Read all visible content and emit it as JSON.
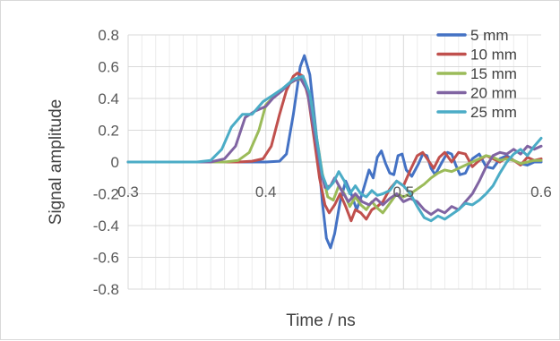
{
  "chart_data": {
    "type": "line",
    "title": "",
    "xlabel": "Time / ns",
    "ylabel": "Signal amplitude",
    "xlim": [
      0.3,
      0.6
    ],
    "ylim": [
      -0.8,
      0.8
    ],
    "x_ticks": [
      "0.3",
      "0.4",
      "0.5",
      "0.6"
    ],
    "y_ticks": [
      "0.8",
      "0.6",
      "0.4",
      "0.2",
      "0",
      "-0.2",
      "-0.4",
      "-0.6",
      "-0.8"
    ],
    "x_minor_step": 0.01,
    "y_major_step": 0.2,
    "grid": true,
    "legend_position": "top-right",
    "series": [
      {
        "name": "5 mm",
        "color": "#4472C4",
        "points": [
          [
            0.3,
            0
          ],
          [
            0.38,
            0
          ],
          [
            0.4,
            0
          ],
          [
            0.41,
            0.005
          ],
          [
            0.415,
            0.05
          ],
          [
            0.42,
            0.3
          ],
          [
            0.425,
            0.6
          ],
          [
            0.428,
            0.67
          ],
          [
            0.432,
            0.55
          ],
          [
            0.437,
            0.15
          ],
          [
            0.441,
            -0.25
          ],
          [
            0.444,
            -0.48
          ],
          [
            0.447,
            -0.54
          ],
          [
            0.45,
            -0.45
          ],
          [
            0.454,
            -0.25
          ],
          [
            0.458,
            -0.12
          ],
          [
            0.462,
            -0.2
          ],
          [
            0.466,
            -0.3
          ],
          [
            0.47,
            -0.2
          ],
          [
            0.475,
            -0.05
          ],
          [
            0.478,
            -0.1
          ],
          [
            0.481,
            0.03
          ],
          [
            0.484,
            0.07
          ],
          [
            0.487,
            -0.01
          ],
          [
            0.49,
            -0.07
          ],
          [
            0.493,
            -0.08
          ],
          [
            0.496,
            0.04
          ],
          [
            0.499,
            0.05
          ],
          [
            0.502,
            -0.05
          ],
          [
            0.506,
            -0.09
          ],
          [
            0.511,
            -0.01
          ],
          [
            0.514,
            0.05
          ],
          [
            0.517,
            0.04
          ],
          [
            0.52,
            -0.04
          ],
          [
            0.523,
            -0.08
          ],
          [
            0.528,
            0
          ],
          [
            0.532,
            0.06
          ],
          [
            0.535,
            0.05
          ],
          [
            0.538,
            -0.02
          ],
          [
            0.541,
            -0.08
          ],
          [
            0.545,
            -0.07
          ],
          [
            0.55,
            0.02
          ],
          [
            0.555,
            0.05
          ],
          [
            0.56,
            -0.03
          ],
          [
            0.565,
            -0.04
          ],
          [
            0.57,
            0.02
          ],
          [
            0.575,
            0.04
          ],
          [
            0.58,
            0.01
          ],
          [
            0.585,
            -0.01
          ],
          [
            0.59,
            -0.02
          ],
          [
            0.595,
            0
          ],
          [
            0.6,
            0
          ]
        ]
      },
      {
        "name": "10 mm",
        "color": "#C0504D",
        "points": [
          [
            0.3,
            0
          ],
          [
            0.38,
            0
          ],
          [
            0.39,
            0.005
          ],
          [
            0.398,
            0.02
          ],
          [
            0.404,
            0.1
          ],
          [
            0.41,
            0.3
          ],
          [
            0.415,
            0.45
          ],
          [
            0.42,
            0.54
          ],
          [
            0.423,
            0.56
          ],
          [
            0.427,
            0.54
          ],
          [
            0.431,
            0.4
          ],
          [
            0.435,
            0.15
          ],
          [
            0.439,
            -0.1
          ],
          [
            0.443,
            -0.27
          ],
          [
            0.446,
            -0.32
          ],
          [
            0.45,
            -0.27
          ],
          [
            0.454,
            -0.2
          ],
          [
            0.458,
            -0.28
          ],
          [
            0.462,
            -0.37
          ],
          [
            0.465,
            -0.3
          ],
          [
            0.469,
            -0.32
          ],
          [
            0.473,
            -0.36
          ],
          [
            0.477,
            -0.3
          ],
          [
            0.481,
            -0.28
          ],
          [
            0.485,
            -0.25
          ],
          [
            0.49,
            -0.17
          ],
          [
            0.495,
            -0.12
          ],
          [
            0.5,
            -0.15
          ],
          [
            0.505,
            -0.05
          ],
          [
            0.51,
            0.04
          ],
          [
            0.514,
            0.06
          ],
          [
            0.518,
            0.01
          ],
          [
            0.522,
            -0.04
          ],
          [
            0.526,
            0.03
          ],
          [
            0.53,
            0.06
          ],
          [
            0.535,
            0
          ],
          [
            0.54,
            0.06
          ],
          [
            0.545,
            0.05
          ],
          [
            0.55,
            -0.03
          ],
          [
            0.555,
            0.01
          ],
          [
            0.56,
            0.04
          ],
          [
            0.565,
            0.02
          ],
          [
            0.57,
            0
          ],
          [
            0.575,
            0.03
          ],
          [
            0.58,
            0.01
          ],
          [
            0.585,
            -0.02
          ],
          [
            0.59,
            0.03
          ],
          [
            0.595,
            0.01
          ],
          [
            0.6,
            0.02
          ]
        ]
      },
      {
        "name": "15 mm",
        "color": "#9BBB59",
        "points": [
          [
            0.3,
            0
          ],
          [
            0.37,
            0
          ],
          [
            0.38,
            0.01
          ],
          [
            0.388,
            0.06
          ],
          [
            0.395,
            0.2
          ],
          [
            0.4,
            0.36
          ],
          [
            0.408,
            0.43
          ],
          [
            0.415,
            0.48
          ],
          [
            0.422,
            0.52
          ],
          [
            0.428,
            0.52
          ],
          [
            0.433,
            0.38
          ],
          [
            0.437,
            0.15
          ],
          [
            0.441,
            -0.07
          ],
          [
            0.445,
            -0.22
          ],
          [
            0.449,
            -0.24
          ],
          [
            0.453,
            -0.15
          ],
          [
            0.457,
            -0.2
          ],
          [
            0.461,
            -0.28
          ],
          [
            0.465,
            -0.22
          ],
          [
            0.469,
            -0.27
          ],
          [
            0.473,
            -0.3
          ],
          [
            0.477,
            -0.25
          ],
          [
            0.481,
            -0.29
          ],
          [
            0.485,
            -0.32
          ],
          [
            0.49,
            -0.26
          ],
          [
            0.495,
            -0.2
          ],
          [
            0.5,
            -0.22
          ],
          [
            0.505,
            -0.2
          ],
          [
            0.51,
            -0.17
          ],
          [
            0.515,
            -0.14
          ],
          [
            0.52,
            -0.1
          ],
          [
            0.525,
            -0.07
          ],
          [
            0.53,
            -0.05
          ],
          [
            0.535,
            -0.06
          ],
          [
            0.54,
            -0.04
          ],
          [
            0.545,
            -0.02
          ],
          [
            0.55,
            0
          ],
          [
            0.555,
            0.02
          ],
          [
            0.56,
            0.04
          ],
          [
            0.565,
            0.03
          ],
          [
            0.57,
            0.01
          ],
          [
            0.575,
            0.02
          ],
          [
            0.58,
            0.01
          ],
          [
            0.585,
            -0.01
          ],
          [
            0.59,
            0
          ],
          [
            0.595,
            0.01
          ],
          [
            0.6,
            0.01
          ]
        ]
      },
      {
        "name": "20 mm",
        "color": "#8064A2",
        "points": [
          [
            0.3,
            0
          ],
          [
            0.36,
            0
          ],
          [
            0.37,
            0.02
          ],
          [
            0.378,
            0.1
          ],
          [
            0.385,
            0.28
          ],
          [
            0.392,
            0.32
          ],
          [
            0.4,
            0.35
          ],
          [
            0.405,
            0.4
          ],
          [
            0.412,
            0.45
          ],
          [
            0.418,
            0.5
          ],
          [
            0.425,
            0.53
          ],
          [
            0.43,
            0.45
          ],
          [
            0.435,
            0.2
          ],
          [
            0.44,
            -0.05
          ],
          [
            0.443,
            -0.16
          ],
          [
            0.447,
            -0.15
          ],
          [
            0.45,
            -0.1
          ],
          [
            0.455,
            -0.18
          ],
          [
            0.46,
            -0.25
          ],
          [
            0.465,
            -0.2
          ],
          [
            0.47,
            -0.25
          ],
          [
            0.475,
            -0.27
          ],
          [
            0.48,
            -0.23
          ],
          [
            0.485,
            -0.27
          ],
          [
            0.49,
            -0.23
          ],
          [
            0.495,
            -0.2
          ],
          [
            0.5,
            -0.25
          ],
          [
            0.505,
            -0.23
          ],
          [
            0.51,
            -0.25
          ],
          [
            0.515,
            -0.3
          ],
          [
            0.52,
            -0.33
          ],
          [
            0.525,
            -0.3
          ],
          [
            0.53,
            -0.32
          ],
          [
            0.535,
            -0.28
          ],
          [
            0.54,
            -0.3
          ],
          [
            0.545,
            -0.25
          ],
          [
            0.55,
            -0.2
          ],
          [
            0.555,
            -0.12
          ],
          [
            0.56,
            -0.03
          ],
          [
            0.565,
            0.04
          ],
          [
            0.57,
            0.06
          ],
          [
            0.575,
            0.05
          ],
          [
            0.58,
            0.08
          ],
          [
            0.585,
            0.05
          ],
          [
            0.59,
            0.1
          ],
          [
            0.595,
            0.08
          ],
          [
            0.6,
            0.1
          ]
        ]
      },
      {
        "name": "25 mm",
        "color": "#4BACC6",
        "points": [
          [
            0.3,
            0
          ],
          [
            0.35,
            0
          ],
          [
            0.36,
            0.01
          ],
          [
            0.368,
            0.08
          ],
          [
            0.375,
            0.22
          ],
          [
            0.383,
            0.3
          ],
          [
            0.39,
            0.3
          ],
          [
            0.398,
            0.38
          ],
          [
            0.405,
            0.42
          ],
          [
            0.412,
            0.46
          ],
          [
            0.42,
            0.52
          ],
          [
            0.427,
            0.54
          ],
          [
            0.432,
            0.43
          ],
          [
            0.437,
            0.15
          ],
          [
            0.441,
            -0.08
          ],
          [
            0.445,
            -0.17
          ],
          [
            0.449,
            -0.13
          ],
          [
            0.453,
            -0.06
          ],
          [
            0.457,
            -0.12
          ],
          [
            0.461,
            -0.2
          ],
          [
            0.465,
            -0.15
          ],
          [
            0.469,
            -0.2
          ],
          [
            0.473,
            -0.22
          ],
          [
            0.477,
            -0.18
          ],
          [
            0.481,
            -0.21
          ],
          [
            0.485,
            -0.2
          ],
          [
            0.49,
            -0.18
          ],
          [
            0.495,
            -0.12
          ],
          [
            0.5,
            -0.15
          ],
          [
            0.505,
            -0.2
          ],
          [
            0.51,
            -0.28
          ],
          [
            0.515,
            -0.35
          ],
          [
            0.52,
            -0.37
          ],
          [
            0.525,
            -0.34
          ],
          [
            0.53,
            -0.36
          ],
          [
            0.535,
            -0.33
          ],
          [
            0.54,
            -0.3
          ],
          [
            0.545,
            -0.26
          ],
          [
            0.55,
            -0.27
          ],
          [
            0.555,
            -0.24
          ],
          [
            0.56,
            -0.2
          ],
          [
            0.565,
            -0.15
          ],
          [
            0.57,
            -0.07
          ],
          [
            0.575,
            0
          ],
          [
            0.58,
            0.05
          ],
          [
            0.585,
            0.08
          ],
          [
            0.59,
            0.04
          ],
          [
            0.595,
            0.1
          ],
          [
            0.6,
            0.15
          ]
        ]
      }
    ]
  }
}
